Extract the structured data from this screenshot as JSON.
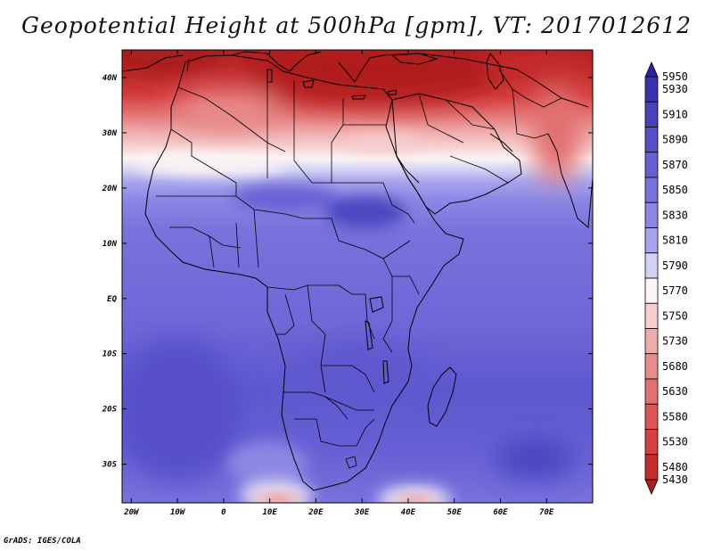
{
  "title": "Geopotential Height at 500hPa [gpm], VT: 2017012612",
  "footer": "GrADS: IGES/COLA",
  "map": {
    "lon_range": [
      -22,
      80
    ],
    "lat_range": [
      -37,
      45
    ],
    "lon_ticks": [
      {
        "lon": -20,
        "label": "20W"
      },
      {
        "lon": -10,
        "label": "10W"
      },
      {
        "lon": 0,
        "label": "0"
      },
      {
        "lon": 10,
        "label": "10E"
      },
      {
        "lon": 20,
        "label": "20E"
      },
      {
        "lon": 30,
        "label": "30E"
      },
      {
        "lon": 40,
        "label": "40E"
      },
      {
        "lon": 50,
        "label": "50E"
      },
      {
        "lon": 60,
        "label": "60E"
      },
      {
        "lon": 70,
        "label": "70E"
      }
    ],
    "lat_ticks": [
      {
        "lat": 40,
        "label": "40N"
      },
      {
        "lat": 30,
        "label": "30N"
      },
      {
        "lat": 20,
        "label": "20N"
      },
      {
        "lat": 10,
        "label": "10N"
      },
      {
        "lat": 0,
        "label": "EQ"
      },
      {
        "lat": -10,
        "label": "10S"
      },
      {
        "lat": -20,
        "label": "20S"
      },
      {
        "lat": -30,
        "label": "30S"
      }
    ]
  },
  "colorbar": {
    "levels": [
      {
        "label": "5950",
        "color": "#2b22a0"
      },
      {
        "label": "5930",
        "color": "#3a32b0"
      },
      {
        "label": "5910",
        "color": "#4640bd"
      },
      {
        "label": "5890",
        "color": "#554fc8"
      },
      {
        "label": "5870",
        "color": "#6660d4"
      },
      {
        "label": "5850",
        "color": "#7872dc"
      },
      {
        "label": "5830",
        "color": "#8c87e4"
      },
      {
        "label": "5810",
        "color": "#a8a5ec"
      },
      {
        "label": "5790",
        "color": "#d2d1f6"
      },
      {
        "label": "5770",
        "color": "#fbf4f4"
      },
      {
        "label": "5750",
        "color": "#f6cccc"
      },
      {
        "label": "5730",
        "color": "#efaaaa"
      },
      {
        "label": "5680",
        "color": "#e88c8c"
      },
      {
        "label": "5630",
        "color": "#e27070"
      },
      {
        "label": "5580",
        "color": "#dc5656"
      },
      {
        "label": "5530",
        "color": "#d43f3f"
      },
      {
        "label": "5480",
        "color": "#c52c2c"
      },
      {
        "label": "5430",
        "color": "#b01f1f"
      }
    ]
  }
}
